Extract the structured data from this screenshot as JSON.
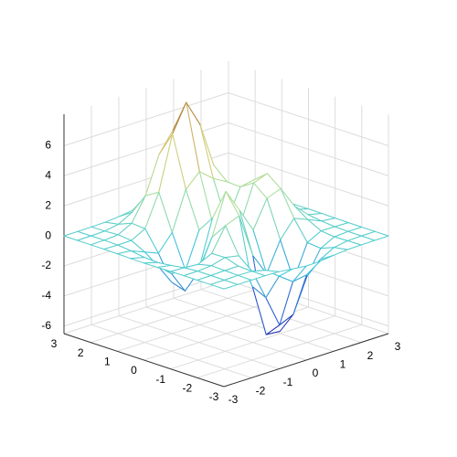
{
  "chart_data": {
    "type": "mesh",
    "x": [
      -3,
      -2.5,
      -2,
      -1.5,
      -1,
      -0.5,
      0,
      0.5,
      1,
      1.5,
      2,
      2.5,
      3
    ],
    "y": [
      -3,
      -2.5,
      -2,
      -1.5,
      -1,
      -0.5,
      0,
      0.5,
      1,
      1.5,
      2,
      2.5,
      3
    ],
    "z": [
      [
        0,
        0,
        0,
        0,
        -0.03,
        -0.14,
        -0.24,
        -0.22,
        -0.11,
        -0.03,
        -0.01,
        0,
        0
      ],
      [
        0,
        0,
        0.02,
        0,
        -0.23,
        -0.91,
        -1.57,
        -1.41,
        -0.69,
        -0.18,
        -0.03,
        0,
        0
      ],
      [
        0,
        0.01,
        0.05,
        0.05,
        -0.59,
        -2.63,
        -4.75,
        -4.34,
        -2.1,
        -0.53,
        -0.06,
        0,
        0
      ],
      [
        0,
        0.01,
        0.08,
        0.33,
        0.15,
        -2.19,
        -5.68,
        -5.76,
        -2.63,
        -0.44,
        0.04,
        0.03,
        0
      ],
      [
        -0.01,
        -0.06,
        -0.13,
        0.3,
        1.86,
        2.22,
        -0.72,
        -2.22,
        -0.27,
        0.88,
        0.5,
        0.11,
        0.01
      ],
      [
        -0.03,
        -0.2,
        -0.8,
        -1.21,
        0.8,
        3.55,
        2,
        0.39,
        2.2,
        2.56,
        1.12,
        0.24,
        0.03
      ],
      [
        -0.04,
        -0.3,
        -1.33,
        -2.77,
        -1.65,
        1.48,
        0.98,
        0.38,
        2.94,
        3.27,
        1.41,
        0.3,
        0.03
      ],
      [
        -0.03,
        -0.25,
        -1.12,
        -2.49,
        -2,
        0.39,
        0.46,
        0.38,
        2.38,
        2.56,
        1.09,
        0.23,
        0.03
      ],
      [
        -0.01,
        -0.11,
        -0.48,
        -0.86,
        0.23,
        2.8,
        3.69,
        2.94,
        2.43,
        1.58,
        0.58,
        0.12,
        0.01
      ],
      [
        0,
        -0.02,
        -0.01,
        0.48,
        2.61,
        6.2,
        8,
        6.25,
        3.25,
        1.19,
        0.29,
        0.05,
        0
      ],
      [
        0,
        0.01,
        0.08,
        0.55,
        2.09,
        4.55,
        5.85,
        4.56,
        2.21,
        0.68,
        0.13,
        0.02,
        0
      ],
      [
        0,
        0,
        0.03,
        0.19,
        0.69,
        1.47,
        1.88,
        1.47,
        0.7,
        0.2,
        0.04,
        0,
        0
      ],
      [
        0,
        0,
        0.01,
        0.03,
        0.11,
        0.23,
        0.3,
        0.23,
        0.11,
        0.03,
        0.01,
        0,
        0
      ]
    ],
    "xlim": [
      -3,
      3
    ],
    "ylim": [
      -3,
      3
    ],
    "zlim": [
      -6.5,
      8.1
    ],
    "xticks": [
      -3,
      -2,
      -1,
      0,
      1,
      2,
      3
    ],
    "yticks": [
      -3,
      -2,
      -1,
      0,
      1,
      2,
      3
    ],
    "zticks": [
      -6,
      -4,
      -2,
      0,
      2,
      4,
      6
    ],
    "grid": true,
    "colormap": [
      "#1c1c9c",
      "#2a5ad0",
      "#3ec8d8",
      "#a8e0a0",
      "#d8c870",
      "#a06a2a"
    ]
  }
}
